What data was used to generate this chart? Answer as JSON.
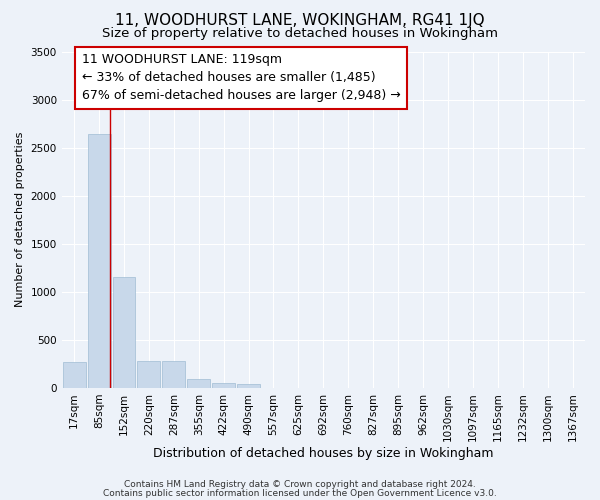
{
  "title": "11, WOODHURST LANE, WOKINGHAM, RG41 1JQ",
  "subtitle": "Size of property relative to detached houses in Wokingham",
  "xlabel": "Distribution of detached houses by size in Wokingham",
  "ylabel": "Number of detached properties",
  "footer_line1": "Contains HM Land Registry data © Crown copyright and database right 2024.",
  "footer_line2": "Contains public sector information licensed under the Open Government Licence v3.0.",
  "bar_labels": [
    "17sqm",
    "85sqm",
    "152sqm",
    "220sqm",
    "287sqm",
    "355sqm",
    "422sqm",
    "490sqm",
    "557sqm",
    "625sqm",
    "692sqm",
    "760sqm",
    "827sqm",
    "895sqm",
    "962sqm",
    "1030sqm",
    "1097sqm",
    "1165sqm",
    "1232sqm",
    "1300sqm",
    "1367sqm"
  ],
  "bar_values": [
    270,
    2640,
    1150,
    280,
    280,
    95,
    50,
    40,
    0,
    0,
    0,
    0,
    0,
    0,
    0,
    0,
    0,
    0,
    0,
    0,
    0
  ],
  "bar_color": "#c8d8ea",
  "bar_edge_color": "#a0bdd4",
  "annotation_line1": "11 WOODHURST LANE: 119sqm",
  "annotation_line2": "← 33% of detached houses are smaller (1,485)",
  "annotation_line3": "67% of semi-detached houses are larger (2,948) →",
  "vline_x": 1.45,
  "vline_color": "#cc0000",
  "ylim": [
    0,
    3500
  ],
  "bg_color": "#edf2f9",
  "plot_bg_color": "#edf2f9",
  "grid_color": "#ffffff",
  "title_fontsize": 11,
  "subtitle_fontsize": 9.5,
  "annotation_fontsize": 9,
  "ylabel_fontsize": 8,
  "xlabel_fontsize": 9,
  "tick_fontsize": 7.5,
  "footer_fontsize": 6.5
}
